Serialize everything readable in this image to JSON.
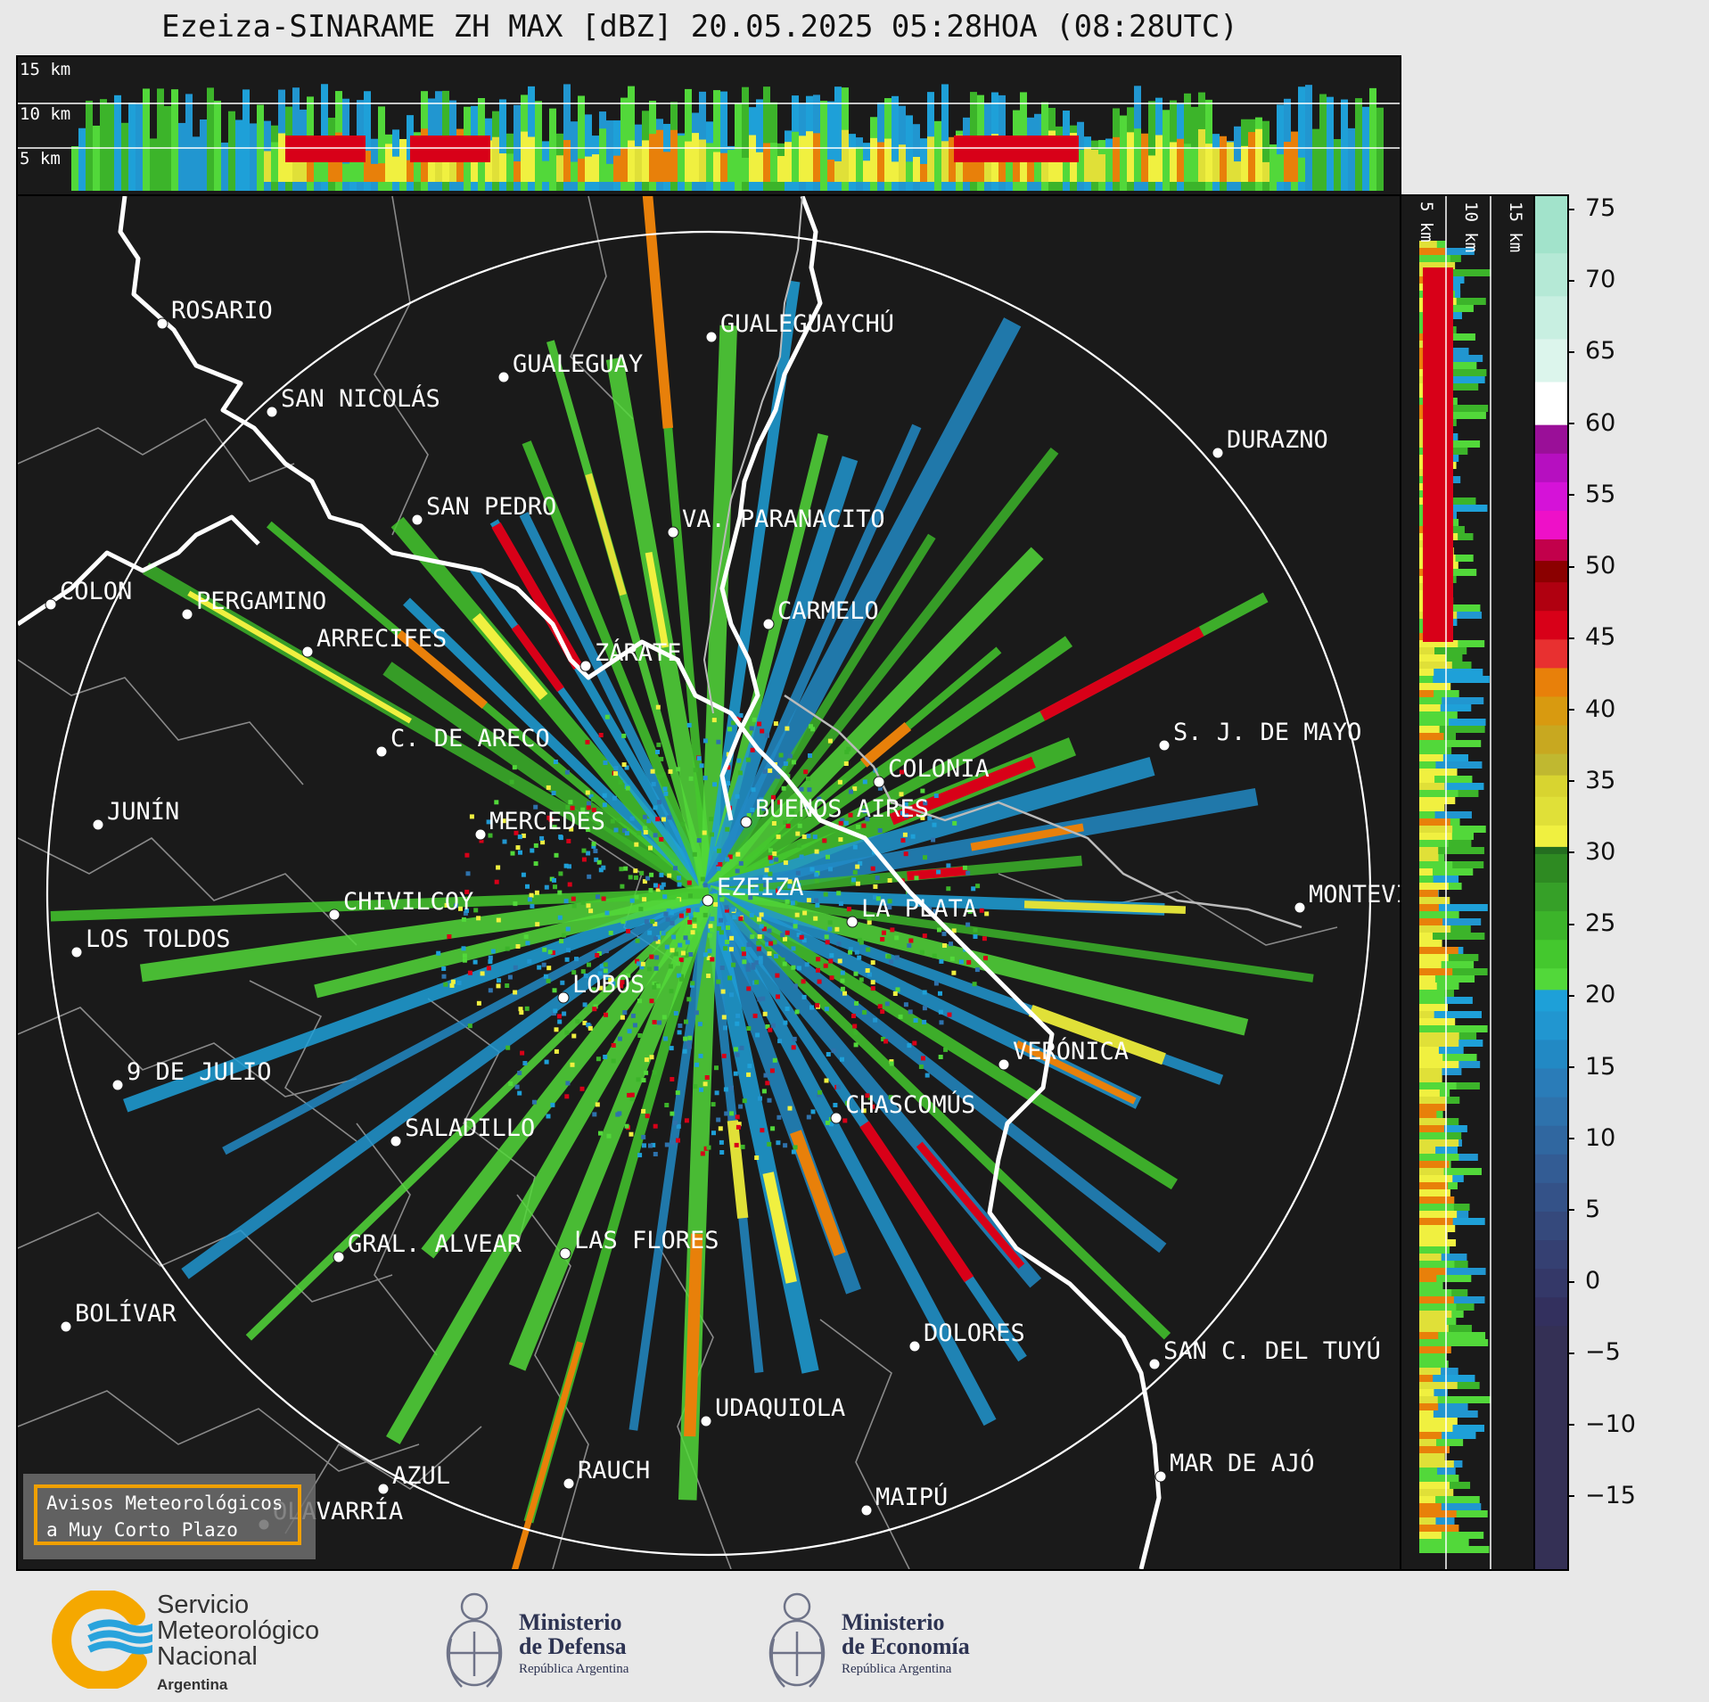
{
  "header": {
    "title": "Ezeiza-SINARAME ZH MAX [dBZ] 20.05.2025 05:28HOA (08:28UTC)"
  },
  "height_labels": {
    "top_panel": [
      "15 km",
      "10 km",
      "5 km"
    ],
    "side_panel": [
      "5 km",
      "10 km",
      "15 km"
    ]
  },
  "colorbar": {
    "ticks": [
      "75",
      "70",
      "65",
      "60",
      "55",
      "50",
      "45",
      "40",
      "35",
      "30",
      "25",
      "20",
      "15",
      "10",
      "5",
      "0",
      "−5",
      "−10",
      "−15"
    ]
  },
  "map": {
    "radar_site": "EZEIZA",
    "cities": [
      {
        "name": "ROSARIO"
      },
      {
        "name": "GUALEGUAYCHÚ"
      },
      {
        "name": "GUALEGUAY"
      },
      {
        "name": "SAN NICOLÁS"
      },
      {
        "name": "DURAZNO"
      },
      {
        "name": "SAN PEDRO"
      },
      {
        "name": "VA. PARANACITO"
      },
      {
        "name": "COLON"
      },
      {
        "name": "PERGAMINO"
      },
      {
        "name": "CARMELO"
      },
      {
        "name": "ARRECIFES"
      },
      {
        "name": "ZÁRATE"
      },
      {
        "name": "S. J. DE MAYO"
      },
      {
        "name": "C. DE ARECO"
      },
      {
        "name": "COLONIA"
      },
      {
        "name": "JUNÍN"
      },
      {
        "name": "BUENOS AIRES"
      },
      {
        "name": "MERCEDES"
      },
      {
        "name": "EZEIZA"
      },
      {
        "name": "MONTEVIDEO"
      },
      {
        "name": "CHIVILCOY"
      },
      {
        "name": "LA PLATA"
      },
      {
        "name": "LOS TOLDOS"
      },
      {
        "name": "LOBOS"
      },
      {
        "name": "VERÓNICA"
      },
      {
        "name": "9 DE JULIO"
      },
      {
        "name": "CHASCOMÚS"
      },
      {
        "name": "SALADILLO"
      },
      {
        "name": "GRAL. ALVEAR"
      },
      {
        "name": "LAS FLORES"
      },
      {
        "name": "BOLÍVAR"
      },
      {
        "name": "DOLORES"
      },
      {
        "name": "SAN C. DEL TUYÚ"
      },
      {
        "name": "UDAQUIOLA"
      },
      {
        "name": "MAR DE AJÓ"
      },
      {
        "name": "AZUL"
      },
      {
        "name": "RAUCH"
      },
      {
        "name": "OLAVARRÍA"
      },
      {
        "name": "MAIPÚ"
      }
    ]
  },
  "avisos": {
    "line1": "Avisos Meteorológicos",
    "line2": "a Muy Corto Plazo"
  },
  "footer": {
    "smn": {
      "line1": "Servicio",
      "line2": "Meteorológico",
      "line3": "Nacional",
      "line4": "Argentina"
    },
    "defensa": {
      "line1": "Ministerio",
      "line2": "de Defensa",
      "line3": "República Argentina"
    },
    "economia": {
      "line1": "Ministerio",
      "line2": "de Economía",
      "line3": "República Argentina"
    }
  },
  "colors": {
    "background": "#1a1a1a",
    "coast": "#ffffff",
    "borders": "#8a8a8a",
    "avisos_border": "#f0a000",
    "smn_orange": "#f5a800",
    "smn_blue": "#29a3dc"
  }
}
